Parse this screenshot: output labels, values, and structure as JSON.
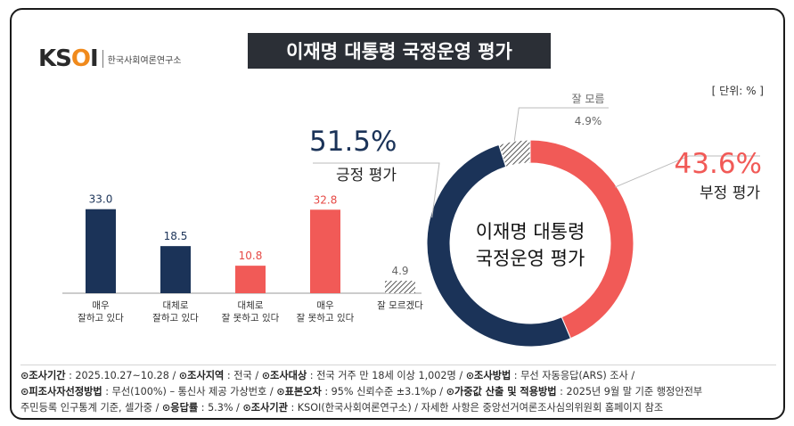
{
  "logo": {
    "mark_a": "KS",
    "mark_b": "O",
    "mark_c": "I",
    "subtitle": "한국사회여론연구소"
  },
  "title": "이재명 대통령 국정운영 평가",
  "unit": "[ 단위: % ]",
  "chart_data": [
    {
      "type": "bar",
      "categories": [
        "매우\n잘하고 있다",
        "대체로\n잘하고 있다",
        "대체로\n잘 못하고 있다",
        "매우\n잘 못하고 있다",
        "잘 모르겠다"
      ],
      "values": [
        33.0,
        18.5,
        10.8,
        32.8,
        4.9
      ],
      "value_labels": [
        "33.0",
        "18.5",
        "10.8",
        "32.8",
        "4.9"
      ],
      "colors": [
        "#1b3358",
        "#1b3358",
        "#f15a57",
        "#f15a57",
        "hatch"
      ],
      "ylim": [
        0,
        35
      ]
    },
    {
      "type": "pie",
      "donut": true,
      "center_label": [
        "이재명 대통령",
        "국정운영 평가"
      ],
      "slices": [
        {
          "name": "부정 평가",
          "value": 43.6,
          "label": "43.6%",
          "color": "#f15a57"
        },
        {
          "name": "긍정 평가",
          "value": 51.5,
          "label": "51.5%",
          "color": "#1b3358"
        },
        {
          "name": "잘 모름",
          "value": 4.9,
          "label": "4.9%",
          "color": "hatch"
        }
      ]
    }
  ],
  "footer": {
    "line1": [
      {
        "key": "⊙조사기간",
        "val": " : 2025.10.27~10.28 / "
      },
      {
        "key": "⊙조사지역",
        "val": " : 전국 / "
      },
      {
        "key": "⊙조사대상",
        "val": " : 전국 거주 만 18세 이상 1,002명 / "
      },
      {
        "key": "⊙조사방법",
        "val": " : 무선 자동응답(ARS) 조사 /"
      }
    ],
    "line2": [
      {
        "key": "⊙피조사자선정방법",
        "val": " : 무선(100%) – 통신사 제공 가상번호 / "
      },
      {
        "key": "⊙표본오차",
        "val": " : 95% 신뢰수준 ±3.1%p / "
      },
      {
        "key": "⊙가중값 산출 및 적용방법",
        "val": " : 2025년 9월 말 기준 행정안전부"
      }
    ],
    "line3": [
      {
        "key": "",
        "val": "주민등록 인구통계 기준, 셀가중 / "
      },
      {
        "key": "⊙응답률",
        "val": " : 5.3% / "
      },
      {
        "key": "⊙조사기관",
        "val": " : KSOI(한국사회여론연구소) / 자세한 사항은 중앙선거여론조사심의위원회 홈페이지 참조"
      }
    ]
  }
}
